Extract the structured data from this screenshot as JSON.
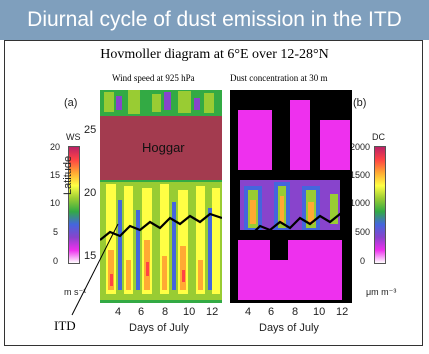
{
  "title": "Diurnal cycle of dust emission in the ITD",
  "subtitle": "Hovmoller diagram at 6°E over 12-28°N",
  "panel_a": {
    "tag": "(a)",
    "title": "Wind speed at 925 hPa",
    "colorbar_label": "WS",
    "colorbar_ticks": [
      "20",
      "15",
      "10",
      "5",
      "0"
    ],
    "unit": "m s⁻¹",
    "region_label": "Hoggar"
  },
  "panel_b": {
    "tag": "(b)",
    "title": "Dust concentration at 30 m",
    "colorbar_label": "DC",
    "colorbar_ticks": [
      "2000",
      "1500",
      "1000",
      "500",
      "0"
    ],
    "unit": "μm m⁻³"
  },
  "y_axis": {
    "label": "Latitude",
    "ticks": [
      "25",
      "20",
      "15"
    ]
  },
  "x_axis": {
    "label": "Days of July",
    "ticks": [
      "4",
      "6",
      "8",
      "10",
      "12"
    ]
  },
  "annotation": "ITD",
  "colors": {
    "title_bar": "#7f9fbd",
    "hoggar": "#a33b4f",
    "scale": [
      "#ffffff",
      "#ee30ee",
      "#8844cc",
      "#4466dd",
      "#33aa44",
      "#99cc33",
      "#ffff44",
      "#ffaa33",
      "#ff4444",
      "#bb2266"
    ]
  }
}
